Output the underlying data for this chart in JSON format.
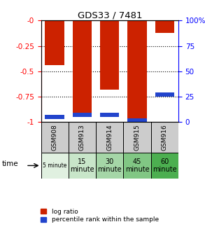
{
  "title": "GDS33 / 7481",
  "samples": [
    "GSM908",
    "GSM913",
    "GSM914",
    "GSM915",
    "GSM916"
  ],
  "time_labels": [
    "5 minute",
    "15\nminute",
    "30\nminute",
    "45\nminute",
    "60\nminute"
  ],
  "time_colors": [
    "#e0f0e0",
    "#c8e6c9",
    "#a5d6a7",
    "#81c784",
    "#4caf50"
  ],
  "log_ratio": [
    -0.44,
    -0.95,
    -0.68,
    -1.0,
    -0.12
  ],
  "percentile_rank_val": [
    5,
    7,
    7,
    2,
    27
  ],
  "ylim_left": [
    0.0,
    -1.0
  ],
  "ylim_right": [
    100,
    0
  ],
  "yticks_left": [
    0,
    -0.25,
    -0.5,
    -0.75,
    -1.0
  ],
  "yticks_right": [
    100,
    75,
    50,
    25,
    0
  ],
  "bar_color_red": "#cc2200",
  "bar_color_blue": "#2244cc",
  "bg_color_sample": "#cccccc",
  "legend_red_label": "log ratio",
  "legend_blue_label": "percentile rank within the sample",
  "time_label": "time"
}
